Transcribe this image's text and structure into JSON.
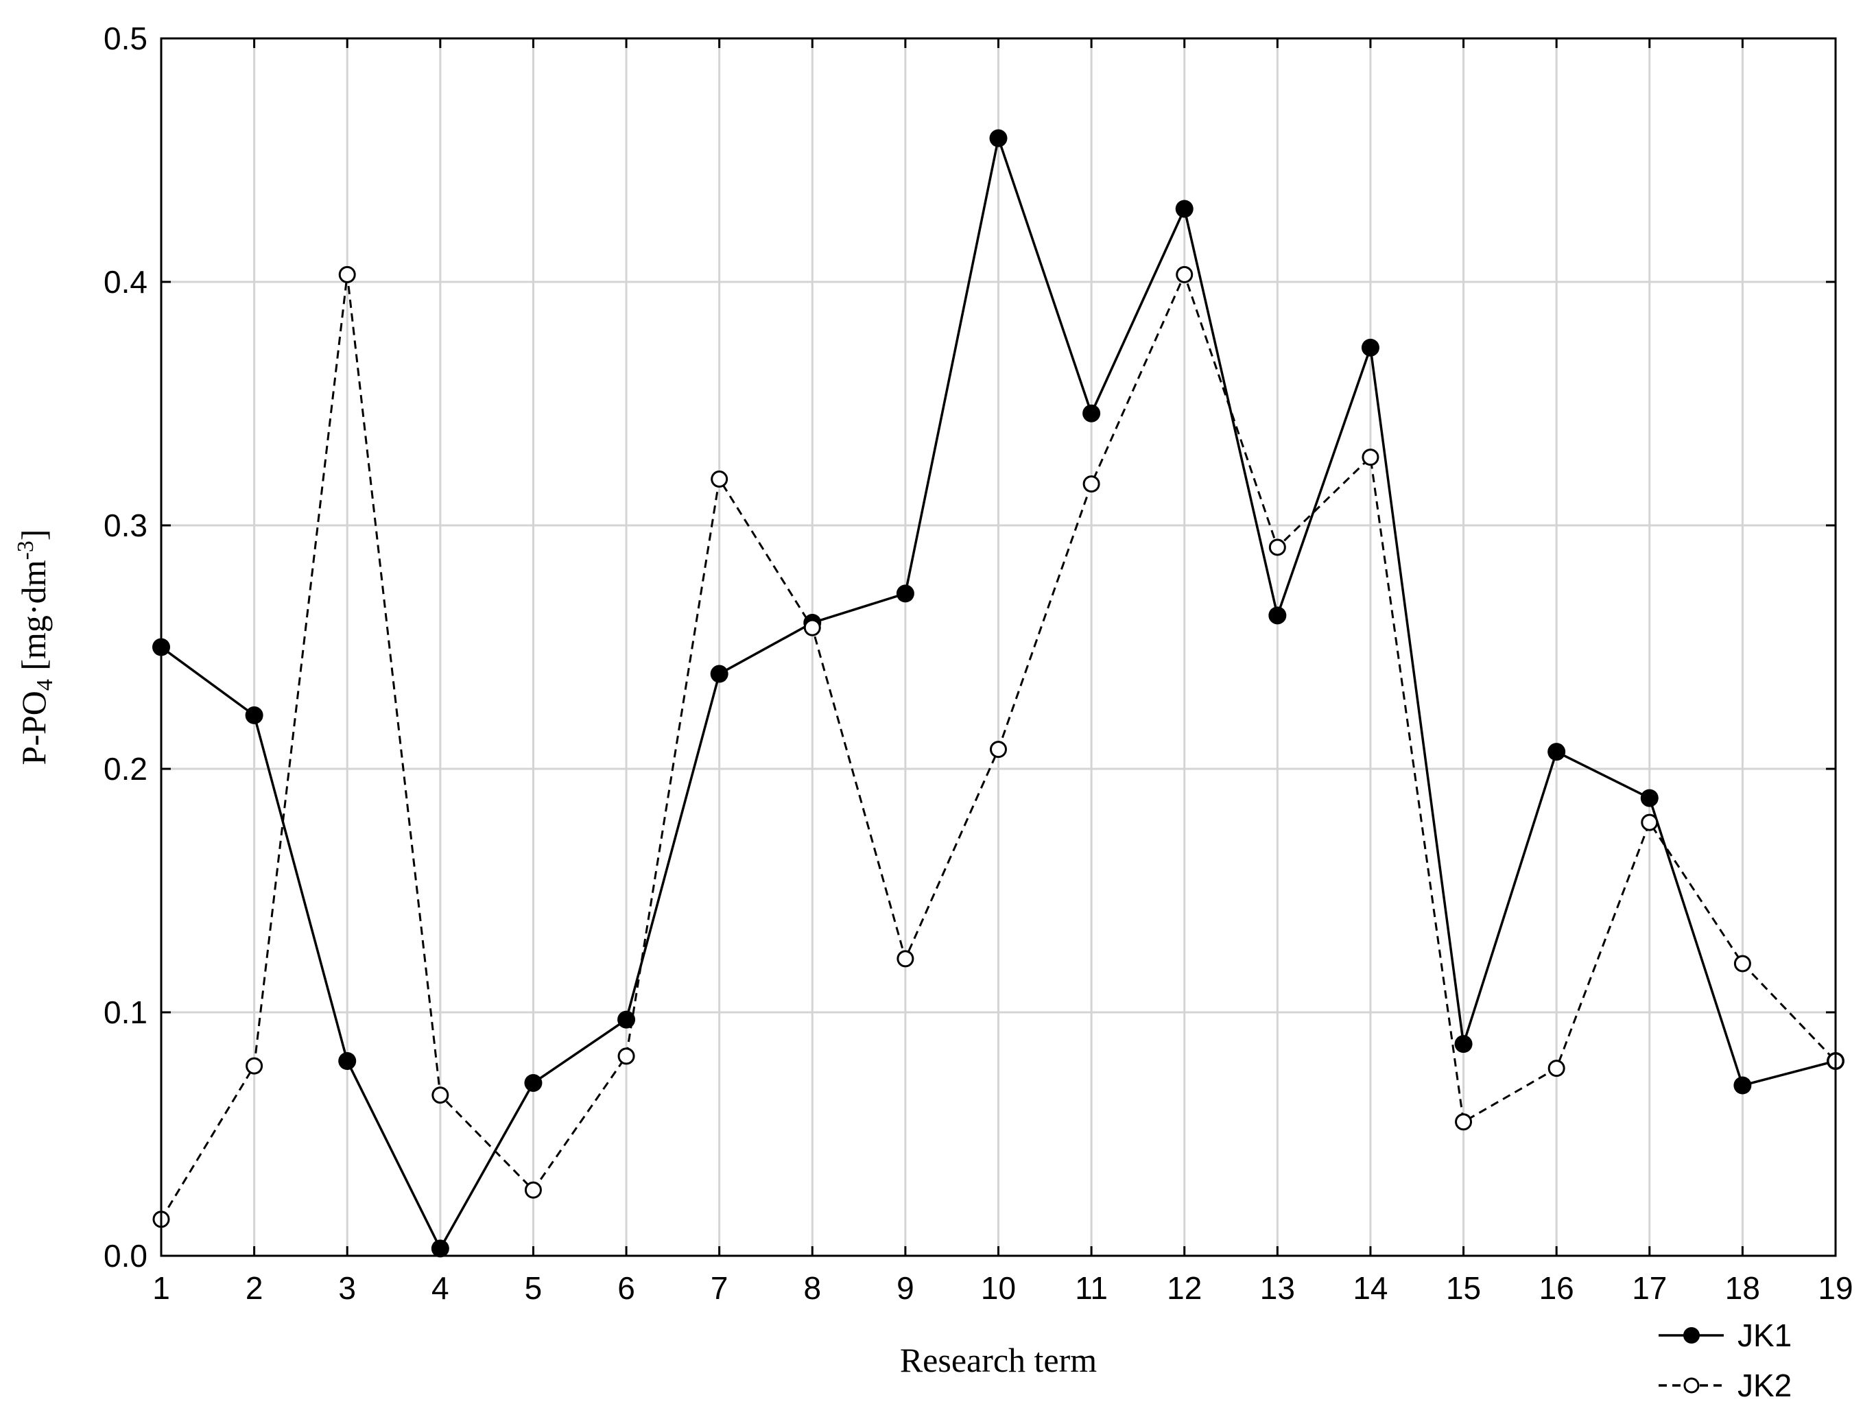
{
  "chart_data": {
    "type": "line",
    "title": "",
    "xlabel": "Research term",
    "ylabel": {
      "main": "P-PO",
      "sub": "4",
      "unit_open": " [mg·dm",
      "sup": "-3",
      "unit_close": "]"
    },
    "x": [
      1,
      2,
      3,
      4,
      5,
      6,
      7,
      8,
      9,
      10,
      11,
      12,
      13,
      14,
      15,
      16,
      17,
      18,
      19
    ],
    "xlim": [
      1,
      19
    ],
    "ylim": [
      0,
      0.5
    ],
    "xticks": [
      "1",
      "2",
      "3",
      "4",
      "5",
      "6",
      "7",
      "8",
      "9",
      "10",
      "11",
      "12",
      "13",
      "14",
      "15",
      "16",
      "17",
      "18",
      "19"
    ],
    "yticks": [
      {
        "value": 0,
        "label": "0.0"
      },
      {
        "value": 0.1,
        "label": "0.1"
      },
      {
        "value": 0.2,
        "label": "0.2"
      },
      {
        "value": 0.3,
        "label": "0.3"
      },
      {
        "value": 0.4,
        "label": "0.4"
      },
      {
        "value": 0.5,
        "label": "0.5"
      }
    ],
    "grid": true,
    "legend_position": "bottom-right",
    "series": [
      {
        "name": "JK1",
        "line_style": "solid",
        "marker": "filled-circle",
        "color": "#000000",
        "values": [
          0.25,
          0.222,
          0.08,
          0.003,
          0.071,
          0.097,
          0.239,
          0.26,
          0.272,
          0.459,
          0.346,
          0.43,
          0.263,
          0.373,
          0.087,
          0.207,
          0.188,
          0.07,
          0.08
        ]
      },
      {
        "name": "JK2",
        "line_style": "dashed",
        "marker": "open-circle",
        "color": "#000000",
        "values": [
          0.015,
          0.078,
          0.403,
          0.066,
          0.027,
          0.082,
          0.319,
          0.258,
          0.122,
          0.208,
          0.317,
          0.403,
          0.291,
          0.328,
          0.055,
          0.077,
          0.178,
          0.12,
          0.08
        ]
      }
    ]
  }
}
